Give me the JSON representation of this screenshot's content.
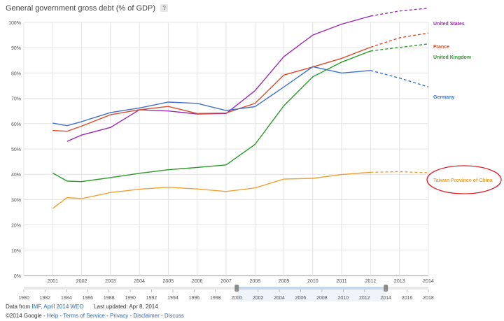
{
  "title": "General government gross debt (% of GDP)",
  "help_badge": "?",
  "footer": {
    "data_from_label": "Data from",
    "source_link": "IMF, April 2014 WEO",
    "updated": "Last updated: Apr 8, 2014",
    "copyright": "©2014 Google",
    "sep": "-",
    "links": [
      "Help",
      "Terms of Service",
      "Privacy",
      "Disclaimer",
      "Discuss"
    ]
  },
  "chart_data": {
    "type": "line",
    "x_ticks": [
      "2001",
      "2002",
      "2003",
      "2004",
      "2005",
      "2006",
      "2007",
      "2008",
      "2009",
      "2010",
      "2011",
      "2012",
      "2013",
      "2014"
    ],
    "y_ticks": [
      "0%",
      "10%",
      "20%",
      "30%",
      "40%",
      "50%",
      "60%",
      "70%",
      "80%",
      "90%",
      "100%"
    ],
    "ylim": [
      0,
      100
    ],
    "grid": true,
    "projection_from": "2012",
    "series": [
      {
        "name": "United States",
        "color": "#9b2ab0",
        "x": [
          "2001.5",
          "2002",
          "2003",
          "2004",
          "2005",
          "2006",
          "2007",
          "2008",
          "2009",
          "2010",
          "2011",
          "2012",
          "2013",
          "2014"
        ],
        "values": [
          53,
          55.5,
          58.5,
          65.5,
          65,
          63.8,
          64,
          73,
          86.5,
          95,
          99.3,
          102.5,
          104.5,
          105.6
        ]
      },
      {
        "name": "France",
        "color": "#dd4b2a",
        "x": [
          "2001",
          "2001.5",
          "2002",
          "2003",
          "2004",
          "2005",
          "2006",
          "2007",
          "2008",
          "2009",
          "2010",
          "2011",
          "2012",
          "2013",
          "2014"
        ],
        "values": [
          57.3,
          57,
          59,
          63.5,
          65.5,
          66.8,
          64,
          64.2,
          68,
          79.2,
          82.4,
          85.8,
          90.2,
          93.9,
          95.8
        ]
      },
      {
        "name": "United Kingdom",
        "color": "#2a9a2a",
        "x": [
          "2001",
          "2001.5",
          "2002",
          "2003",
          "2004",
          "2005",
          "2006",
          "2007",
          "2008",
          "2009",
          "2010",
          "2011",
          "2012",
          "2013",
          "2014"
        ],
        "values": [
          40.5,
          37.3,
          37.1,
          38.7,
          40.4,
          41.8,
          42.7,
          43.7,
          51.8,
          67.1,
          78.5,
          84.3,
          88.7,
          90.1,
          91.5
        ]
      },
      {
        "name": "Germany",
        "color": "#3f6fcf",
        "x": [
          "2001",
          "2001.5",
          "2002",
          "2003",
          "2004",
          "2005",
          "2006",
          "2007",
          "2008",
          "2009",
          "2010",
          "2011",
          "2012",
          "2013",
          "2014"
        ],
        "values": [
          60.2,
          59.2,
          60.8,
          64.4,
          66.2,
          68.5,
          68,
          65.2,
          66.7,
          74.5,
          82.5,
          80,
          81,
          78,
          74.5
        ]
      },
      {
        "name": "Taiwan Province of China",
        "color": "#f0a030",
        "x": [
          "2001",
          "2001.5",
          "2002",
          "2003",
          "2004",
          "2005",
          "2006",
          "2007",
          "2008",
          "2009",
          "2010",
          "2011",
          "2012",
          "2013",
          "2014"
        ],
        "values": [
          26.5,
          30.8,
          30.4,
          32.8,
          34.1,
          34.9,
          34.2,
          33.2,
          34.6,
          38.1,
          38.4,
          39.9,
          40.8,
          41,
          40.6
        ]
      }
    ],
    "annotation": {
      "label": "Taiwan Province of China",
      "shape": "ellipse",
      "color": "#e0202a"
    },
    "timeline": {
      "labels": [
        "1980",
        "1982",
        "1984",
        "1986",
        "1988",
        "1990",
        "1992",
        "1994",
        "1996",
        "1998",
        "2000",
        "2002",
        "2004",
        "2006",
        "2008",
        "2010",
        "2012",
        "2014",
        "2016",
        "2018"
      ],
      "selected_start": "2000",
      "selected_end": "2014"
    }
  }
}
